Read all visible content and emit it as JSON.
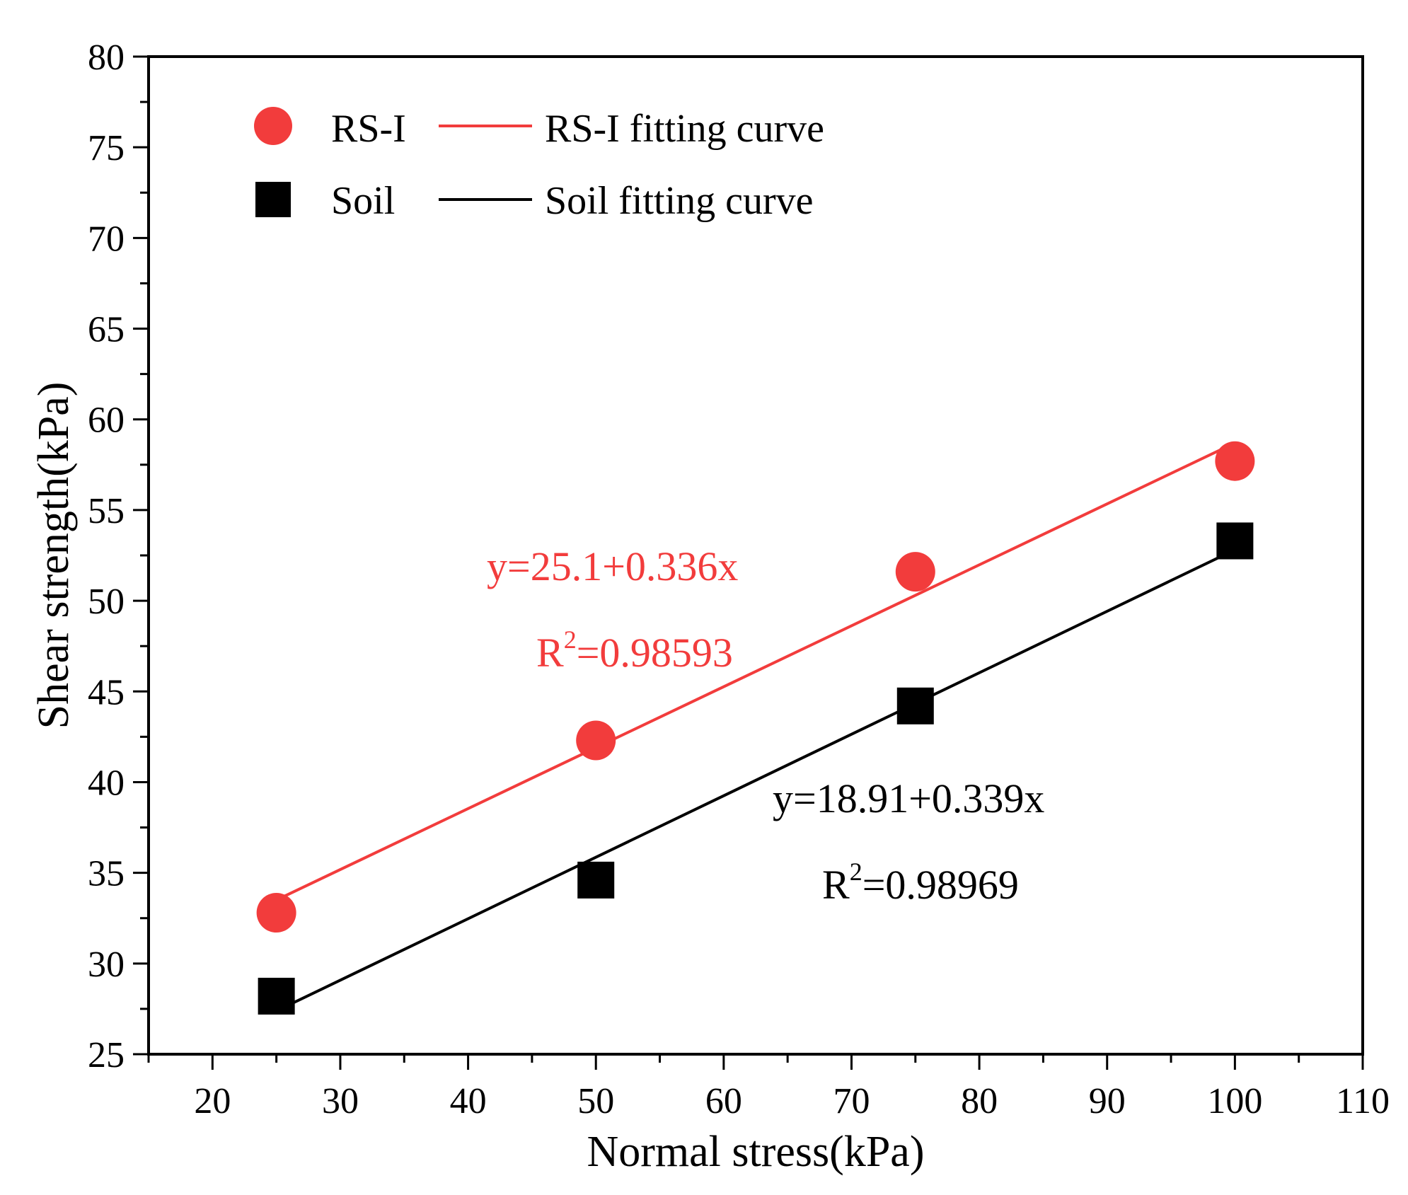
{
  "chart_data": {
    "type": "scatter",
    "title": "",
    "xlabel": "Normal stress(kPa)",
    "ylabel": "Shear strength(kPa)",
    "xlim": [
      15,
      110
    ],
    "ylim": [
      25,
      80
    ],
    "x_ticks": [
      20,
      30,
      40,
      50,
      60,
      70,
      80,
      90,
      100,
      110
    ],
    "y_ticks": [
      25,
      30,
      35,
      40,
      45,
      50,
      55,
      60,
      65,
      70,
      75,
      80
    ],
    "grid": false,
    "legend_position": "top-left",
    "series": [
      {
        "name": "RS-I",
        "fit_name": "RS-I fitting curve",
        "marker": "circle",
        "color": "#f23c3c",
        "x": [
          25,
          50,
          75,
          100
        ],
        "y": [
          32.8,
          42.3,
          51.6,
          57.7
        ],
        "fit": {
          "intercept": 25.1,
          "slope": 0.336,
          "x_range": [
            25,
            100
          ]
        },
        "equation": "y=25.1+0.336x",
        "r2_label": "R",
        "r2_sup": "2",
        "r2_value": "=0.98593"
      },
      {
        "name": "Soil",
        "fit_name": "Soil fitting curve",
        "marker": "square",
        "color": "#000000",
        "x": [
          25,
          50,
          75,
          100
        ],
        "y": [
          28.2,
          34.6,
          44.2,
          53.3
        ],
        "fit": {
          "intercept": 18.91,
          "slope": 0.339,
          "x_range": [
            25,
            100
          ]
        },
        "equation": "y=18.91+0.339x",
        "r2_label": "R",
        "r2_sup": "2",
        "r2_value": "=0.98969"
      }
    ]
  }
}
